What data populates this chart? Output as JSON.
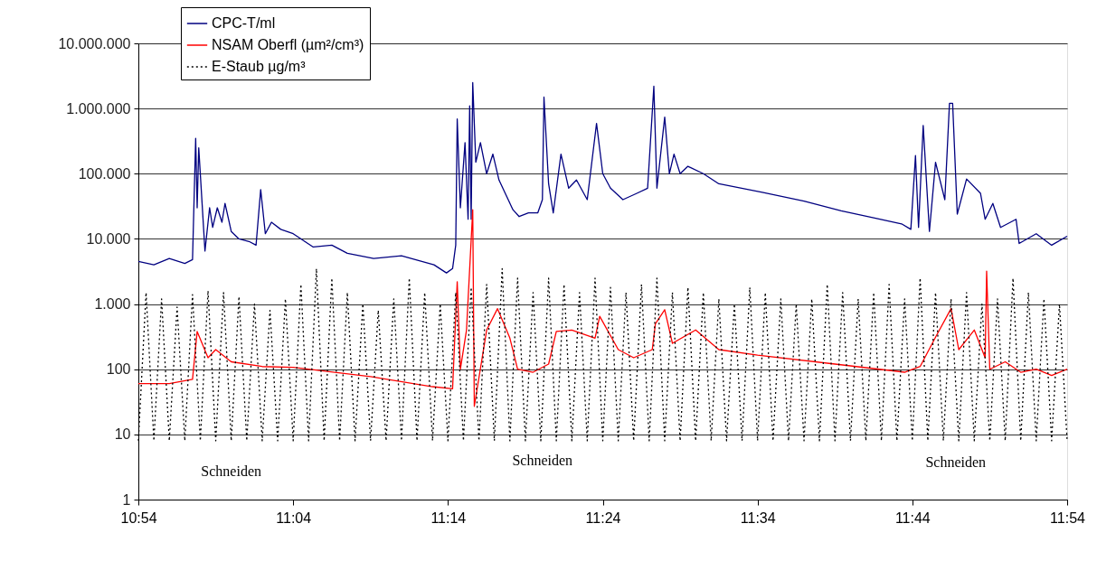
{
  "chart_data": {
    "type": "line",
    "log": "y",
    "grid": "y",
    "legend": "top left",
    "xlim": [
      10.9,
      11.9
    ],
    "xticks": [
      {
        "value": 10.9,
        "label": "10:54"
      },
      {
        "value": 11.0667,
        "label": "11:04"
      },
      {
        "value": 11.2333,
        "label": "11:14"
      },
      {
        "value": 11.4,
        "label": "11:24"
      },
      {
        "value": 11.5667,
        "label": "11:34"
      },
      {
        "value": 11.7333,
        "label": "11:44"
      },
      {
        "value": 11.9,
        "label": "11:54"
      }
    ],
    "ylim": [
      1,
      10000000
    ],
    "yticks": [
      1,
      10,
      {
        "value": 100,
        "label": "100"
      },
      {
        "value": 1000,
        "label": "1.000"
      },
      {
        "value": 10000,
        "label": "10.000"
      },
      {
        "value": 100000,
        "label": "100.000"
      },
      {
        "value": 1000000,
        "label": "1.000.000"
      },
      {
        "value": 10000000,
        "label": "10.000.000"
      }
    ],
    "annotations": [
      "Schneiden",
      "Schneiden",
      "Schneiden"
    ],
    "series": [
      {
        "name": "CPC-T/ml",
        "color": "#000080",
        "line_style": "solid",
        "x": [
          10.9,
          10.9167,
          10.9333,
          10.95,
          10.9583,
          10.9617,
          10.9633,
          10.965,
          10.9717,
          10.9767,
          10.98,
          10.985,
          10.99,
          10.9933,
          11.0,
          11.0083,
          11.02,
          11.0267,
          11.0317,
          11.0367,
          11.0433,
          11.0533,
          11.0667,
          11.0883,
          11.1083,
          11.125,
          11.1533,
          11.1833,
          11.2183,
          11.2317,
          11.2383,
          11.2417,
          11.2433,
          11.2467,
          11.2517,
          11.255,
          11.2567,
          11.2583,
          11.26,
          11.2633,
          11.2683,
          11.275,
          11.2817,
          11.2883,
          11.295,
          11.3033,
          11.31,
          11.32,
          11.33,
          11.335,
          11.3367,
          11.3417,
          11.3467,
          11.355,
          11.3633,
          11.3717,
          11.3833,
          11.3933,
          11.4,
          11.4083,
          11.4217,
          11.4367,
          11.4483,
          11.455,
          11.4583,
          11.4667,
          11.4717,
          11.4767,
          11.4833,
          11.4917,
          11.5083,
          11.525,
          11.5717,
          11.6167,
          11.6567,
          11.6917,
          11.7217,
          11.7317,
          11.7367,
          11.74,
          11.745,
          11.7517,
          11.7583,
          11.7683,
          11.7733,
          11.7767,
          11.7817,
          11.7917,
          11.8067,
          11.8117,
          11.82,
          11.8283,
          11.845,
          11.8483,
          11.8667,
          11.8833,
          11.9
        ],
        "values": [
          4500,
          4000,
          5000,
          4200,
          4800,
          350000,
          30000,
          250000,
          6500,
          30000,
          15000,
          30000,
          18000,
          35000,
          13000,
          10000,
          9000,
          8000,
          57000,
          12000,
          18000,
          14000,
          12000,
          7500,
          8000,
          6000,
          5000,
          5500,
          4000,
          3000,
          3500,
          8000,
          690000,
          30000,
          300000,
          20000,
          1100000,
          20000,
          2500000,
          150000,
          300000,
          100000,
          200000,
          80000,
          50000,
          28000,
          22000,
          25000,
          25000,
          40000,
          1500000,
          70000,
          25000,
          200000,
          60000,
          80000,
          40000,
          590000,
          100000,
          60000,
          40000,
          50000,
          60000,
          2200000,
          60000,
          740000,
          100000,
          200000,
          100000,
          130000,
          100000,
          70000,
          52000,
          38000,
          27000,
          21000,
          17000,
          14000,
          190000,
          15000,
          550000,
          13000,
          150000,
          40000,
          1200000,
          1200000,
          24000,
          83000,
          50000,
          20000,
          35000,
          15000,
          20000,
          8500,
          12000,
          8000,
          11000
        ]
      },
      {
        "name": "NSAM Oberfl (µm²/cm³)",
        "color": "#ff0000",
        "line_style": "solid",
        "x": [
          10.9,
          10.9333,
          10.9583,
          10.9633,
          10.975,
          10.9833,
          11.0,
          11.0333,
          11.0667,
          11.15,
          11.2167,
          11.2383,
          11.2433,
          11.2467,
          11.2533,
          11.26,
          11.2617,
          11.275,
          11.2867,
          11.3,
          11.3083,
          11.325,
          11.3417,
          11.35,
          11.3667,
          11.3917,
          11.3967,
          11.4167,
          11.4333,
          11.4533,
          11.4567,
          11.4667,
          11.475,
          11.5,
          11.525,
          11.5667,
          11.65,
          11.725,
          11.7417,
          11.7583,
          11.775,
          11.7833,
          11.8,
          11.8117,
          11.8133,
          11.8167,
          11.8333,
          11.85,
          11.8667,
          11.8833,
          11.9
        ],
        "values": [
          60,
          60,
          70,
          380,
          150,
          200,
          130,
          110,
          107,
          77,
          54,
          50,
          2200,
          100,
          400,
          28000,
          27,
          400,
          850,
          300,
          100,
          90,
          120,
          380,
          400,
          300,
          650,
          200,
          150,
          200,
          500,
          820,
          250,
          400,
          200,
          165,
          120,
          90,
          110,
          310,
          850,
          200,
          400,
          150,
          3200,
          100,
          130,
          90,
          100,
          80,
          100
        ]
      },
      {
        "name": "E-Staub µg/m³",
        "color": "#000000",
        "line_style": "dotted",
        "x": [
          10.9,
          10.9083,
          10.9167,
          10.925,
          10.9333,
          10.9417,
          10.95,
          10.9583,
          10.9667,
          10.975,
          10.9833,
          10.9917,
          11.0,
          11.0083,
          11.0167,
          11.025,
          11.0333,
          11.0417,
          11.05,
          11.0583,
          11.0667,
          11.075,
          11.0833,
          11.0917,
          11.1,
          11.1083,
          11.1167,
          11.125,
          11.1333,
          11.1417,
          11.15,
          11.1583,
          11.1667,
          11.175,
          11.1833,
          11.1917,
          11.2,
          11.2083,
          11.2167,
          11.225,
          11.2333,
          11.2417,
          11.25,
          11.2583,
          11.2667,
          11.275,
          11.2833,
          11.2917,
          11.3,
          11.3083,
          11.3167,
          11.325,
          11.3333,
          11.3417,
          11.35,
          11.3583,
          11.3667,
          11.375,
          11.3833,
          11.3917,
          11.4,
          11.4083,
          11.4167,
          11.425,
          11.4333,
          11.4417,
          11.45,
          11.4583,
          11.4667,
          11.475,
          11.4833,
          11.4917,
          11.5,
          11.5083,
          11.5167,
          11.525,
          11.5333,
          11.5417,
          11.55,
          11.5583,
          11.5667,
          11.575,
          11.5833,
          11.5917,
          11.6,
          11.6083,
          11.6167,
          11.625,
          11.6333,
          11.6417,
          11.65,
          11.6583,
          11.6667,
          11.675,
          11.6833,
          11.6917,
          11.7,
          11.7083,
          11.7167,
          11.725,
          11.7333,
          11.7417,
          11.75,
          11.7583,
          11.7667,
          11.775,
          11.7833,
          11.7917,
          11.8,
          11.8083,
          11.8167,
          11.825,
          11.8333,
          11.8417,
          11.85,
          11.8583,
          11.8667,
          11.875,
          11.8833,
          11.8917,
          11.9
        ],
        "values": [
          8,
          1500,
          8,
          1200,
          8,
          900,
          8,
          1400,
          8,
          1600,
          8,
          1500,
          8,
          1300,
          8,
          1000,
          8,
          800,
          8,
          1200,
          8,
          2000,
          8,
          3500,
          8,
          2500,
          8,
          1500,
          8,
          1000,
          8,
          800,
          8,
          1200,
          8,
          2500,
          8,
          1500,
          8,
          1000,
          8,
          1500,
          8,
          1800,
          8,
          2000,
          8,
          3500,
          8,
          2500,
          8,
          1500,
          8,
          2500,
          8,
          2000,
          8,
          1500,
          8,
          2500,
          8,
          1800,
          8,
          1500,
          8,
          2000,
          8,
          2500,
          8,
          1500,
          8,
          1800,
          8,
          1500,
          8,
          1200,
          8,
          1000,
          8,
          1800,
          8,
          1500,
          8,
          1200,
          8,
          1000,
          8,
          1200,
          8,
          2000,
          8,
          1500,
          8,
          1200,
          8,
          1500,
          8,
          2000,
          8,
          1200,
          8,
          2500,
          8,
          1500,
          8,
          1200,
          8,
          1500,
          8,
          1000,
          8,
          1200,
          8,
          2500,
          8,
          1500,
          8,
          1200,
          8,
          1000,
          8
        ]
      }
    ]
  }
}
